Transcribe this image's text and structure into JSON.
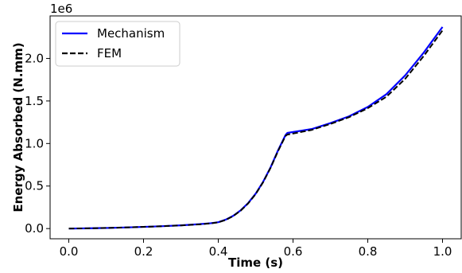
{
  "chart_data": {
    "type": "line",
    "xlabel": "Time (s)",
    "ylabel": "Energy Absorbed (N.mm)",
    "y_offset_label": "1e6",
    "xlim": [
      -0.05,
      1.05
    ],
    "ylim": [
      -0.12,
      2.5
    ],
    "x_ticks": [
      0.0,
      0.2,
      0.4,
      0.6,
      0.8,
      1.0
    ],
    "x_tick_labels": [
      "0.0",
      "0.2",
      "0.4",
      "0.6",
      "0.8",
      "1.0"
    ],
    "y_ticks": [
      0.0,
      0.5,
      1.0,
      1.5,
      2.0
    ],
    "y_tick_labels": [
      "0.0",
      "0.5",
      "1.0",
      "1.5",
      "2.0"
    ],
    "y_scale_factor": 1000000,
    "grid": false,
    "legend_position": "top-left",
    "series": [
      {
        "name": "Mechanism",
        "color": "#0000ff",
        "style": "solid",
        "x": [
          0.0,
          0.05,
          0.1,
          0.15,
          0.2,
          0.25,
          0.3,
          0.35,
          0.38,
          0.4,
          0.42,
          0.44,
          0.46,
          0.48,
          0.5,
          0.52,
          0.54,
          0.56,
          0.58,
          0.585,
          0.6,
          0.65,
          0.7,
          0.75,
          0.8,
          0.85,
          0.9,
          0.95,
          1.0
        ],
        "y": [
          0.0,
          0.003,
          0.007,
          0.013,
          0.02,
          0.028,
          0.038,
          0.052,
          0.063,
          0.075,
          0.105,
          0.15,
          0.215,
          0.3,
          0.41,
          0.55,
          0.72,
          0.92,
          1.1,
          1.125,
          1.135,
          1.17,
          1.24,
          1.32,
          1.43,
          1.58,
          1.8,
          2.07,
          2.37
        ]
      },
      {
        "name": "FEM",
        "color": "#000000",
        "style": "dashed",
        "x": [
          0.0,
          0.05,
          0.1,
          0.15,
          0.2,
          0.25,
          0.3,
          0.35,
          0.38,
          0.4,
          0.42,
          0.44,
          0.46,
          0.48,
          0.5,
          0.52,
          0.54,
          0.56,
          0.58,
          0.585,
          0.6,
          0.65,
          0.7,
          0.75,
          0.8,
          0.85,
          0.9,
          0.95,
          1.0
        ],
        "y": [
          0.0,
          0.003,
          0.007,
          0.013,
          0.02,
          0.028,
          0.037,
          0.05,
          0.061,
          0.073,
          0.102,
          0.147,
          0.211,
          0.296,
          0.405,
          0.545,
          0.715,
          0.912,
          1.09,
          1.105,
          1.117,
          1.16,
          1.23,
          1.31,
          1.415,
          1.55,
          1.76,
          2.03,
          2.33
        ]
      }
    ]
  }
}
